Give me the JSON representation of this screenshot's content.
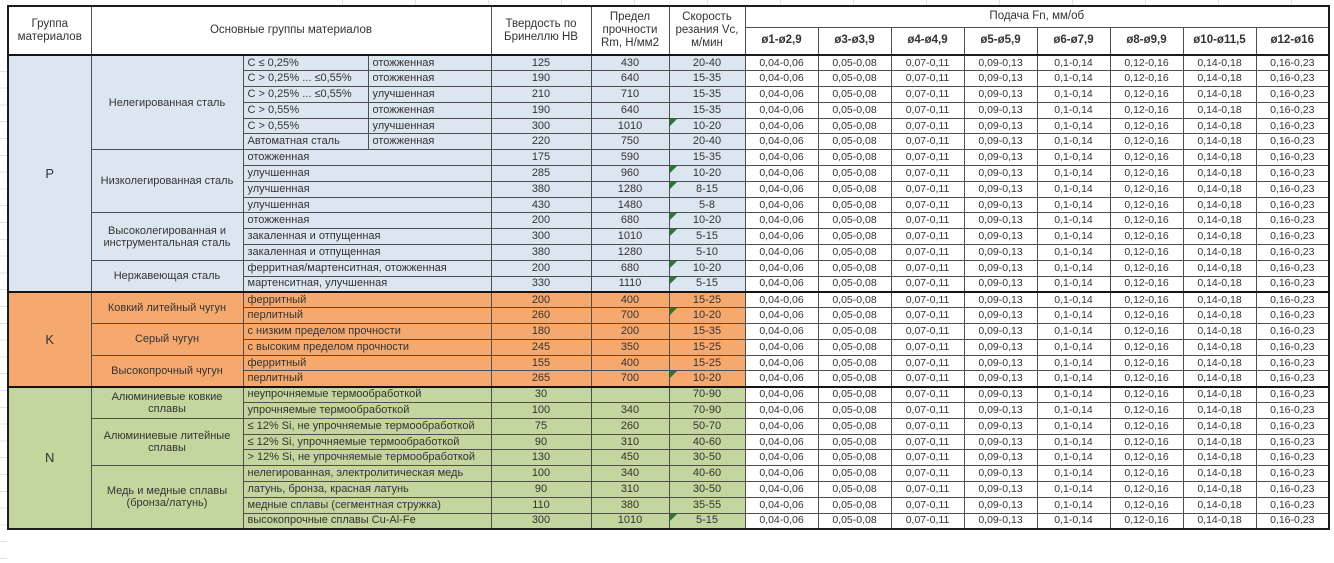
{
  "header": {
    "col_group": "Группа материалов",
    "col_main": "Основные группы материалов",
    "col_hb": "Твердость по Бринеллю HB",
    "col_rm": "Предел прочности Rm, Н/мм2",
    "col_vc": "Скорость резания Vc, м/мин",
    "feed_title": "Подача Fn, мм/об",
    "feed_cols": [
      "ø1-ø2,9",
      "ø3-ø3,9",
      "ø4-ø4,9",
      "ø5-ø5,9",
      "ø6-ø7,9",
      "ø8-ø9,9",
      "ø10-ø11,5",
      "ø12-ø16"
    ]
  },
  "feed_values": [
    "0,04-0,06",
    "0,05-0,08",
    "0,07-0,11",
    "0,09-0,13",
    "0,1-0,14",
    "0,12-0,16",
    "0,14-0,18",
    "0,16-0,23"
  ],
  "colors": {
    "P": "#dce6f1",
    "K": "#f6a96f",
    "N": "#c2d69e",
    "triangle": "#217a36"
  },
  "groups": [
    {
      "code": "P",
      "subgroups": [
        {
          "name": "Нелегированная сталь",
          "rows": [
            {
              "sub1": "C ≤ 0,25%",
              "sub2": "отожженная",
              "hb": "125",
              "rm": "430",
              "vc": "20-40"
            },
            {
              "sub1": "C > 0,25% ... ≤0,55%",
              "sub2": "отожженная",
              "hb": "190",
              "rm": "640",
              "vc": "15-35"
            },
            {
              "sub1": "C > 0,25% ... ≤0,55%",
              "sub2": "улучшенная",
              "hb": "210",
              "rm": "710",
              "vc": "15-35"
            },
            {
              "sub1": "C > 0,55%",
              "sub2": "отожженная",
              "hb": "190",
              "rm": "640",
              "vc": "15-35"
            },
            {
              "sub1": "C > 0,55%",
              "sub2": "улучшенная",
              "hb": "300",
              "rm": "1010",
              "vc": "10-20",
              "flag": true
            },
            {
              "sub1": "Автоматная сталь",
              "sub2": "отожженная",
              "hb": "220",
              "rm": "750",
              "vc": "20-40"
            }
          ]
        },
        {
          "name": "Низколегированная сталь",
          "rows": [
            {
              "sub": "отожженная",
              "hb": "175",
              "rm": "590",
              "vc": "15-35"
            },
            {
              "sub": "улучшенная",
              "hb": "285",
              "rm": "960",
              "vc": "10-20",
              "flag": true
            },
            {
              "sub": "улучшенная",
              "hb": "380",
              "rm": "1280",
              "vc": "8-15",
              "flag": true
            },
            {
              "sub": "улучшенная",
              "hb": "430",
              "rm": "1480",
              "vc": "5-8"
            }
          ]
        },
        {
          "name": "Высоколегированная и инструментальная сталь",
          "rows": [
            {
              "sub": "отожженная",
              "hb": "200",
              "rm": "680",
              "vc": "10-20",
              "flag": true
            },
            {
              "sub": "закаленная и отпущенная",
              "hb": "300",
              "rm": "1010",
              "vc": "5-15",
              "flag": true
            },
            {
              "sub": "закаленная и отпущенная",
              "hb": "380",
              "rm": "1280",
              "vc": "5-10"
            }
          ]
        },
        {
          "name": "Нержавеющая сталь",
          "rows": [
            {
              "sub": "ферритная/мартенситная, отожженная",
              "hb": "200",
              "rm": "680",
              "vc": "10-20",
              "flag": true
            },
            {
              "sub": "мартенситная, улучшенная",
              "hb": "330",
              "rm": "1110",
              "vc": "5-15",
              "flag": true
            }
          ]
        }
      ]
    },
    {
      "code": "K",
      "subgroups": [
        {
          "name": "Ковкий литейный чугун",
          "rows": [
            {
              "sub": "ферритный",
              "hb": "200",
              "rm": "400",
              "vc": "15-25"
            },
            {
              "sub": "перлитный",
              "hb": "260",
              "rm": "700",
              "vc": "10-20",
              "flag": true
            }
          ]
        },
        {
          "name": "Серый чугун",
          "rows": [
            {
              "sub": "с низким пределом прочности",
              "hb": "180",
              "rm": "200",
              "vc": "15-35"
            },
            {
              "sub": "с высоким пределом прочности",
              "hb": "245",
              "rm": "350",
              "vc": "15-25"
            }
          ]
        },
        {
          "name": "Высокопрочный чугун",
          "rows": [
            {
              "sub": "ферритный",
              "hb": "155",
              "rm": "400",
              "vc": "15-25"
            },
            {
              "sub": "перлитный",
              "hb": "265",
              "rm": "700",
              "vc": "10-20",
              "flag": true
            }
          ]
        }
      ]
    },
    {
      "code": "N",
      "subgroups": [
        {
          "name": "Алюминиевые ковкие сплавы",
          "rows": [
            {
              "sub": "неупрочняемые термообработкой",
              "hb": "30",
              "rm": "",
              "vc": "70-90"
            },
            {
              "sub": "упрочняемые термообработкой",
              "hb": "100",
              "rm": "340",
              "vc": "70-90"
            }
          ]
        },
        {
          "name": "Алюминиевые литейные сплавы",
          "rows": [
            {
              "sub": "≤ 12% Si, не упрочняемые термообработкой",
              "hb": "75",
              "rm": "260",
              "vc": "50-70"
            },
            {
              "sub": "≤ 12% Si, упрочняемые термообработкой",
              "hb": "90",
              "rm": "310",
              "vc": "40-60"
            },
            {
              "sub": "> 12% Si, не упрочняемые термообработкой",
              "hb": "130",
              "rm": "450",
              "vc": "30-50"
            }
          ]
        },
        {
          "name": "Медь и медные сплавы (бронза/латунь)",
          "rows": [
            {
              "sub": "нелегированная, электролитическая медь",
              "hb": "100",
              "rm": "340",
              "vc": "40-60"
            },
            {
              "sub": "латунь, бронза, красная латунь",
              "hb": "90",
              "rm": "310",
              "vc": "30-50"
            },
            {
              "sub": "медные сплавы (сегментная стружка)",
              "hb": "110",
              "rm": "380",
              "vc": "35-55"
            },
            {
              "sub": "высокопрочные сплавы Cu-Al-Fe",
              "hb": "300",
              "rm": "1010",
              "vc": "5-15",
              "flag": true
            }
          ]
        }
      ]
    }
  ]
}
